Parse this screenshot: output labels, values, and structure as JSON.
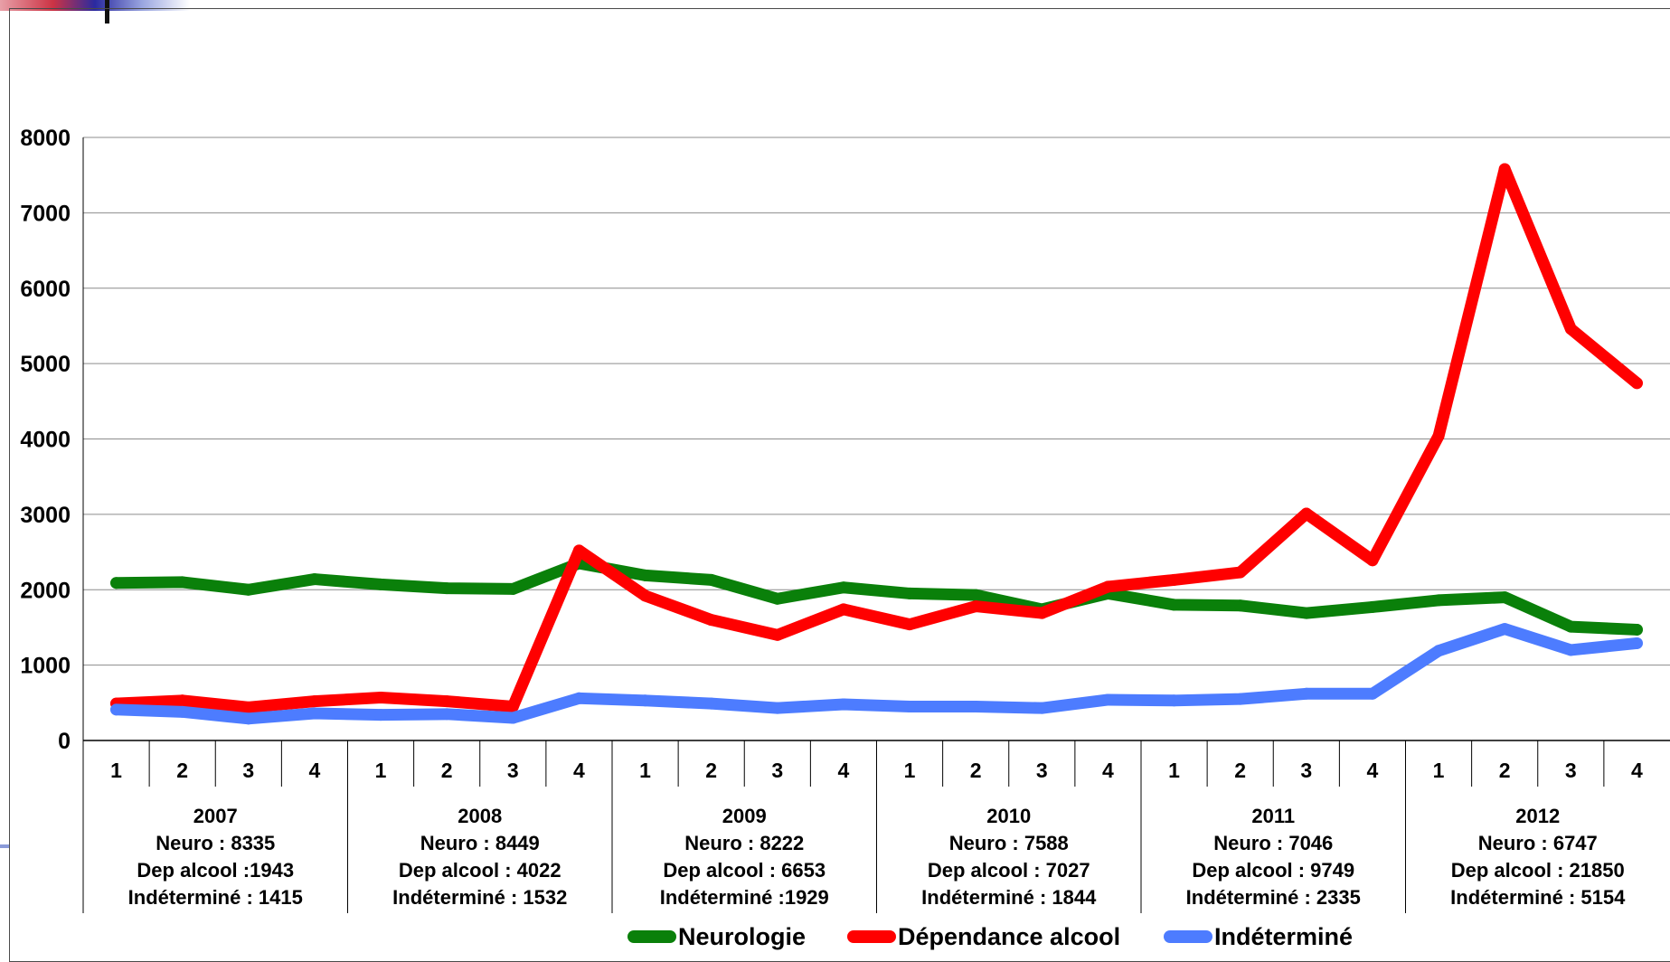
{
  "chart_data": {
    "type": "line",
    "title": "",
    "xlabel": "",
    "ylabel": "",
    "ylim": [
      0,
      8000
    ],
    "yticks": [
      0,
      1000,
      2000,
      3000,
      4000,
      5000,
      6000,
      7000,
      8000
    ],
    "grid": true,
    "legend_position": "bottom",
    "categories": [
      "1",
      "2",
      "3",
      "4",
      "1",
      "2",
      "3",
      "4",
      "1",
      "2",
      "3",
      "4",
      "1",
      "2",
      "3",
      "4",
      "1",
      "2",
      "3",
      "4",
      "1",
      "2",
      "3",
      "4"
    ],
    "groups": [
      {
        "lines": [
          "2007",
          "Neuro : 8335",
          "Dep alcool :1943",
          "Indéterminé : 1415"
        ]
      },
      {
        "lines": [
          "2008",
          "Neuro : 8449",
          "Dep alcool : 4022",
          "Indéterminé : 1532"
        ]
      },
      {
        "lines": [
          "2009",
          "Neuro : 8222",
          "Dep alcool : 6653",
          "Indéterminé :1929"
        ]
      },
      {
        "lines": [
          "2010",
          "Neuro : 7588",
          "Dep alcool : 7027",
          "Indéterminé : 1844"
        ]
      },
      {
        "lines": [
          "2011",
          "Neuro : 7046",
          "Dep alcool : 9749",
          "Indéterminé : 2335"
        ]
      },
      {
        "lines": [
          "2012",
          "Neuro : 6747",
          "Dep alcool : 21850",
          "Indéterminé : 5154"
        ]
      }
    ],
    "series": [
      {
        "name": "Neurologie",
        "color": "#0a800a",
        "values": [
          2090,
          2100,
          2000,
          2140,
          2070,
          2020,
          2010,
          2350,
          2190,
          2130,
          1880,
          2030,
          1950,
          1930,
          1740,
          1950,
          1800,
          1790,
          1690,
          1770,
          1860,
          1900,
          1510,
          1470
        ]
      },
      {
        "name": "Dépendance alcool",
        "color": "#ff0000",
        "values": [
          490,
          530,
          440,
          520,
          570,
          520,
          450,
          2520,
          1920,
          1600,
          1400,
          1740,
          1540,
          1780,
          1690,
          2040,
          2130,
          2230,
          3010,
          2390,
          4040,
          7580,
          5460,
          4740
        ]
      },
      {
        "name": "Indéterminé",
        "color": "#4d7cff",
        "values": [
          410,
          380,
          290,
          360,
          340,
          350,
          300,
          560,
          530,
          490,
          430,
          480,
          450,
          450,
          430,
          540,
          530,
          550,
          620,
          620,
          1190,
          1480,
          1200,
          1290
        ]
      }
    ]
  }
}
